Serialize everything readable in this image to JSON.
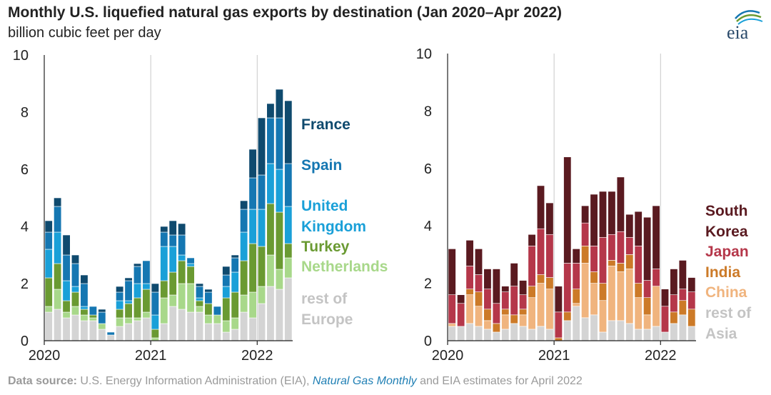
{
  "title": "Monthly U.S. liquefied natural gas exports by destination (Jan 2020–Apr 2022)",
  "subtitle": "billion cubic feet per day",
  "logo_text": "eia",
  "source": {
    "label": "Data source:",
    "text1": " U.S. Energy Information Administration (EIA), ",
    "italic": "Natural Gas Monthly",
    "text2": " and EIA estimates for April 2022"
  },
  "chart_data": [
    {
      "type": "bar",
      "stacked": true,
      "ylim": [
        0,
        10
      ],
      "yticks": [
        "0",
        "2",
        "4",
        "6",
        "8",
        "10"
      ],
      "xtick_labels": [
        "2020",
        "2021",
        "2022"
      ],
      "grid": "vertical at year start",
      "categories": [
        "Jan 2020",
        "Feb 2020",
        "Mar 2020",
        "Apr 2020",
        "May 2020",
        "Jun 2020",
        "Jul 2020",
        "Aug 2020",
        "Sep 2020",
        "Oct 2020",
        "Nov 2020",
        "Dec 2020",
        "Jan 2021",
        "Feb 2021",
        "Mar 2021",
        "Apr 2021",
        "May 2021",
        "Jun 2021",
        "Jul 2021",
        "Aug 2021",
        "Sep 2021",
        "Oct 2021",
        "Nov 2021",
        "Dec 2021",
        "Jan 2022",
        "Feb 2022",
        "Mar 2022",
        "Apr 2022"
      ],
      "series": [
        {
          "name": "rest of Europe",
          "color": "#d4d4d4",
          "values": [
            1.0,
            1.1,
            0.8,
            0.9,
            0.7,
            0.7,
            0.4,
            0.2,
            0.5,
            0.6,
            0.7,
            0.8,
            0.0,
            0.6,
            1.2,
            1.1,
            1.0,
            1.0,
            0.6,
            0.6,
            0.3,
            0.4,
            1.0,
            0.8,
            1.3,
            1.9,
            1.8,
            2.2
          ]
        },
        {
          "name": "Netherlands",
          "color": "#a8d88a",
          "values": [
            0.2,
            0.7,
            0.2,
            0.3,
            0.2,
            0.1,
            0.2,
            0.0,
            0.3,
            0.2,
            0.1,
            0.2,
            0.1,
            0.9,
            0.4,
            0.9,
            1.0,
            0.2,
            0.3,
            0.3,
            0.4,
            0.4,
            0.6,
            0.9,
            0.6,
            1.1,
            0.7,
            0.7
          ]
        },
        {
          "name": "Turkey",
          "color": "#6a9a32",
          "values": [
            1.0,
            0.9,
            0.4,
            0.5,
            0.2,
            0.1,
            0.0,
            0.0,
            0.3,
            0.5,
            0.7,
            0.8,
            0.3,
            0.6,
            0.8,
            0.8,
            0.6,
            0.2,
            0.4,
            0.0,
            0.8,
            0.9,
            1.2,
            1.7,
            1.4,
            1.8,
            2.0,
            0.5
          ]
        },
        {
          "name": "United Kingdom",
          "color": "#1aa0d8",
          "values": [
            1.0,
            1.1,
            0.7,
            0.2,
            0.1,
            0.0,
            0.0,
            0.0,
            0.3,
            0.1,
            0.5,
            0.2,
            0.5,
            1.2,
            0.9,
            0.2,
            0.1,
            0.1,
            0.0,
            0.0,
            0.4,
            0.7,
            1.0,
            1.2,
            1.3,
            1.4,
            1.5,
            1.3
          ]
        },
        {
          "name": "Spain",
          "color": "#1577b2",
          "values": [
            0.6,
            0.9,
            0.9,
            0.8,
            0.8,
            0.3,
            0.4,
            0.1,
            0.3,
            0.7,
            0.6,
            0.8,
            0.8,
            0.5,
            0.4,
            0.7,
            0.2,
            0.4,
            0.4,
            0.3,
            0.4,
            0.5,
            0.8,
            1.1,
            1.2,
            1.6,
            1.8,
            1.5
          ]
        },
        {
          "name": "France",
          "color": "#0f4a6e",
          "values": [
            0.4,
            0.3,
            0.7,
            0.3,
            0.3,
            0.0,
            0.1,
            0.0,
            0.2,
            0.1,
            0.1,
            0.0,
            0.3,
            0.2,
            0.5,
            0.4,
            0.0,
            0.1,
            0.1,
            0.0,
            0.3,
            0.1,
            0.3,
            1.0,
            2.0,
            0.5,
            1.0,
            2.2
          ]
        }
      ],
      "legend": [
        {
          "lines": [
            "France"
          ],
          "color": "#0f4a6e"
        },
        {
          "lines": [
            "Spain"
          ],
          "color": "#1577b2"
        },
        {
          "lines": [
            "United",
            "Kingdom"
          ],
          "color": "#1aa0d8"
        },
        {
          "lines": [
            "Turkey"
          ],
          "color": "#6a9a32"
        },
        {
          "lines": [
            "Netherlands"
          ],
          "color": "#a8d88a"
        },
        {
          "lines": [
            "rest of",
            "Europe"
          ],
          "color": "#c4c4c4"
        }
      ]
    },
    {
      "type": "bar",
      "stacked": true,
      "ylim": [
        0,
        10
      ],
      "yticks": [
        "0",
        "2",
        "4",
        "6",
        "8",
        "10"
      ],
      "xtick_labels": [
        "2020",
        "2021",
        "2022"
      ],
      "grid": "vertical at year start",
      "categories": [
        "Jan 2020",
        "Feb 2020",
        "Mar 2020",
        "Apr 2020",
        "May 2020",
        "Jun 2020",
        "Jul 2020",
        "Aug 2020",
        "Sep 2020",
        "Oct 2020",
        "Nov 2020",
        "Dec 2020",
        "Jan 2021",
        "Feb 2021",
        "Mar 2021",
        "Apr 2021",
        "May 2021",
        "Jun 2021",
        "Jul 2021",
        "Aug 2021",
        "Sep 2021",
        "Oct 2021",
        "Nov 2021",
        "Dec 2021",
        "Jan 2022",
        "Feb 2022",
        "Mar 2022",
        "Apr 2022"
      ],
      "series": [
        {
          "name": "rest of Asia",
          "color": "#d4d4d4",
          "values": [
            0.5,
            0.5,
            0.6,
            0.5,
            0.4,
            0.3,
            0.4,
            0.6,
            0.5,
            0.4,
            0.5,
            0.4,
            0.0,
            0.7,
            1.2,
            0.8,
            0.9,
            0.3,
            0.7,
            0.7,
            0.6,
            0.4,
            0.4,
            0.5,
            0.3,
            0.6,
            0.9,
            0.5
          ]
        },
        {
          "name": "China",
          "color": "#f0b47e",
          "values": [
            0.1,
            0.0,
            1.0,
            0.7,
            0.3,
            0.0,
            0.5,
            0.0,
            0.4,
            1.1,
            1.5,
            1.4,
            0.0,
            0.0,
            0.1,
            1.9,
            1.1,
            1.1,
            1.9,
            1.7,
            1.9,
            1.1,
            0.5,
            1.4,
            0.0,
            0.0,
            0.0,
            0.0
          ]
        },
        {
          "name": "India",
          "color": "#cc7a28",
          "values": [
            0.0,
            0.0,
            0.2,
            0.5,
            0.4,
            0.3,
            0.2,
            0.3,
            0.2,
            0.4,
            0.3,
            0.4,
            0.1,
            0.3,
            0.5,
            0.6,
            0.4,
            0.6,
            0.2,
            0.3,
            0.5,
            0.5,
            0.6,
            0.0,
            0.0,
            0.4,
            0.5,
            0.6
          ]
        },
        {
          "name": "Japan",
          "color": "#b5374a",
          "values": [
            1.0,
            0.8,
            0.8,
            0.6,
            0.7,
            0.7,
            0.6,
            1.0,
            0.5,
            1.4,
            1.6,
            1.5,
            0.9,
            1.7,
            0.9,
            0.8,
            0.9,
            1.6,
            0.9,
            1.1,
            0.6,
            1.3,
            0.6,
            0.6,
            0.9,
            0.6,
            0.4,
            0.6
          ]
        },
        {
          "name": "South Korea",
          "color": "#5a1a20",
          "values": [
            1.6,
            0.3,
            0.9,
            0.9,
            0.7,
            1.2,
            0.2,
            0.8,
            0.5,
            0.4,
            1.5,
            1.1,
            0.9,
            3.7,
            0.5,
            0.6,
            1.8,
            1.6,
            1.5,
            1.9,
            0.8,
            1.2,
            2.2,
            2.2,
            0.6,
            0.9,
            1.0,
            0.5
          ]
        }
      ],
      "legend": [
        {
          "lines": [
            "South",
            "Korea"
          ],
          "color": "#5a1a20"
        },
        {
          "lines": [
            "Japan"
          ],
          "color": "#b5374a"
        },
        {
          "lines": [
            "India"
          ],
          "color": "#cc7a28"
        },
        {
          "lines": [
            "China"
          ],
          "color": "#f0b47e"
        },
        {
          "lines": [
            "rest of",
            "Asia"
          ],
          "color": "#c4c4c4"
        }
      ]
    }
  ]
}
